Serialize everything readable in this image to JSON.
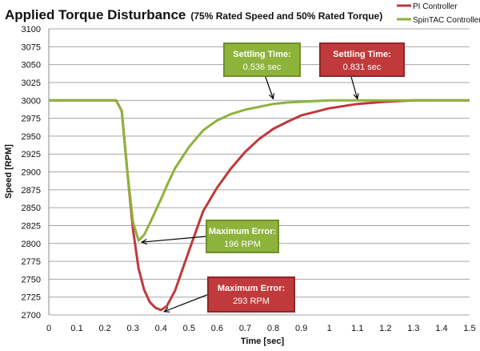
{
  "chart_data": {
    "type": "line",
    "title": "Applied Torque Disturbance",
    "subtitle": "(75% Rated Speed and 50% Rated Torque)",
    "xlabel": "Time [sec]",
    "ylabel": "Speed [RPM]",
    "xlim": [
      0,
      1.5
    ],
    "ylim": [
      2700,
      3100
    ],
    "x_ticks": [
      "0",
      "0.1",
      "0.2",
      "0.3",
      "0.4",
      "0.5",
      "0.6",
      "0.7",
      "0.8",
      "0.9",
      "1",
      "1.1",
      "1.2",
      "1.3",
      "1.4",
      "1.5"
    ],
    "y_ticks": [
      "2700",
      "2725",
      "2750",
      "2775",
      "2800",
      "2825",
      "2850",
      "2875",
      "2900",
      "2925",
      "2950",
      "2975",
      "3000",
      "3025",
      "3050",
      "3075",
      "3100"
    ],
    "grid": "horizontal",
    "legend_position": "top-right",
    "series": [
      {
        "name": "PI Controller",
        "color": "#c0393b",
        "x": [
          0,
          0.24,
          0.26,
          0.28,
          0.3,
          0.32,
          0.34,
          0.36,
          0.38,
          0.4,
          0.42,
          0.45,
          0.5,
          0.55,
          0.6,
          0.65,
          0.7,
          0.75,
          0.8,
          0.85,
          0.9,
          1.0,
          1.1,
          1.2,
          1.3,
          1.5
        ],
        "y": [
          3000,
          3000,
          2985,
          2900,
          2820,
          2765,
          2735,
          2718,
          2710,
          2707,
          2712,
          2734,
          2790,
          2845,
          2878,
          2905,
          2928,
          2946,
          2960,
          2970,
          2979,
          2989,
          2995,
          2998,
          3000,
          3000
        ]
      },
      {
        "name": "SpinTAC Controller",
        "color": "#8db33a",
        "x": [
          0,
          0.24,
          0.26,
          0.28,
          0.3,
          0.32,
          0.34,
          0.36,
          0.38,
          0.4,
          0.42,
          0.45,
          0.5,
          0.55,
          0.6,
          0.65,
          0.7,
          0.75,
          0.8,
          0.85,
          0.9,
          1.0,
          1.1,
          1.5
        ],
        "y": [
          3000,
          3000,
          2985,
          2900,
          2830,
          2804,
          2812,
          2828,
          2845,
          2862,
          2880,
          2905,
          2935,
          2958,
          2972,
          2981,
          2987,
          2991,
          2995,
          2997,
          2998,
          3000,
          3000,
          3000
        ]
      }
    ],
    "annotations": [
      {
        "id": "green-settling",
        "title": "Settling Time:",
        "value": "0.536 sec",
        "color": "#8db33a",
        "target": [
          0.8,
          3000
        ]
      },
      {
        "id": "red-settling",
        "title": "Settling Time:",
        "value": "0.831 sec",
        "color": "#c0393b",
        "target": [
          1.1,
          3000
        ]
      },
      {
        "id": "green-max-error",
        "title": "Maximum Error:",
        "value": "196 RPM",
        "color": "#8db33a",
        "target": [
          0.32,
          2804
        ]
      },
      {
        "id": "red-max-error",
        "title": "Maximum Error:",
        "value": "293 RPM",
        "color": "#c0393b",
        "target": [
          0.4,
          2707
        ]
      }
    ]
  }
}
